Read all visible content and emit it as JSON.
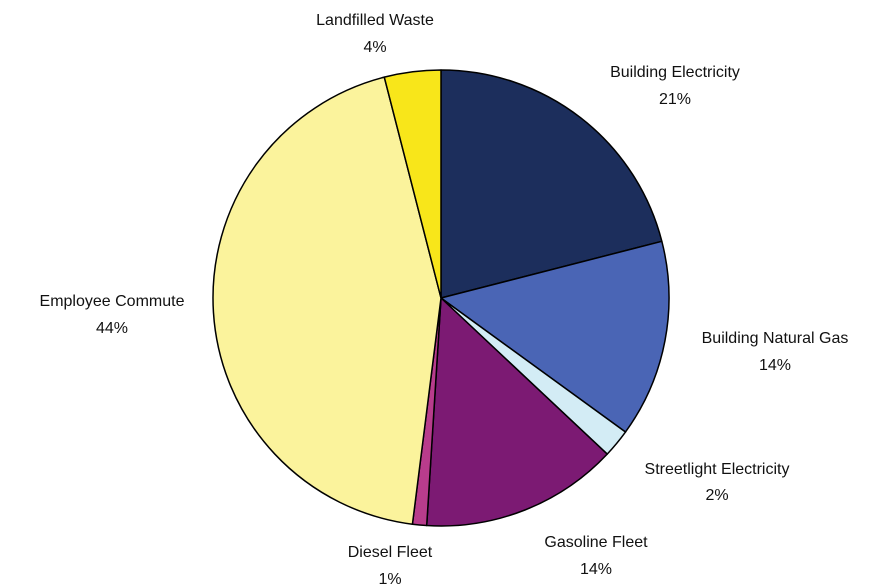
{
  "chart_data": {
    "type": "pie",
    "slices": [
      {
        "label": "Building Electricity",
        "value": 21,
        "value_label": "21%",
        "color": "#1c2e5c"
      },
      {
        "label": "Building Natural Gas",
        "value": 14,
        "value_label": "14%",
        "color": "#4a65b5"
      },
      {
        "label": "Streetlight Electricity",
        "value": 2,
        "value_label": "2%",
        "color": "#d3ecf5"
      },
      {
        "label": "Gasoline Fleet",
        "value": 14,
        "value_label": "14%",
        "color": "#7c1a73"
      },
      {
        "label": "Diesel Fleet",
        "value": 1,
        "value_label": "1%",
        "color": "#b83c8c"
      },
      {
        "label": "Employee Commute",
        "value": 44,
        "value_label": "44%",
        "color": "#fbf39c"
      },
      {
        "label": "Landfilled Waste",
        "value": 4,
        "value_label": "4%",
        "color": "#f8e61a"
      }
    ],
    "start_angle_deg": 0,
    "direction": "clockwise",
    "legend": "none",
    "data_labels": "outside"
  }
}
